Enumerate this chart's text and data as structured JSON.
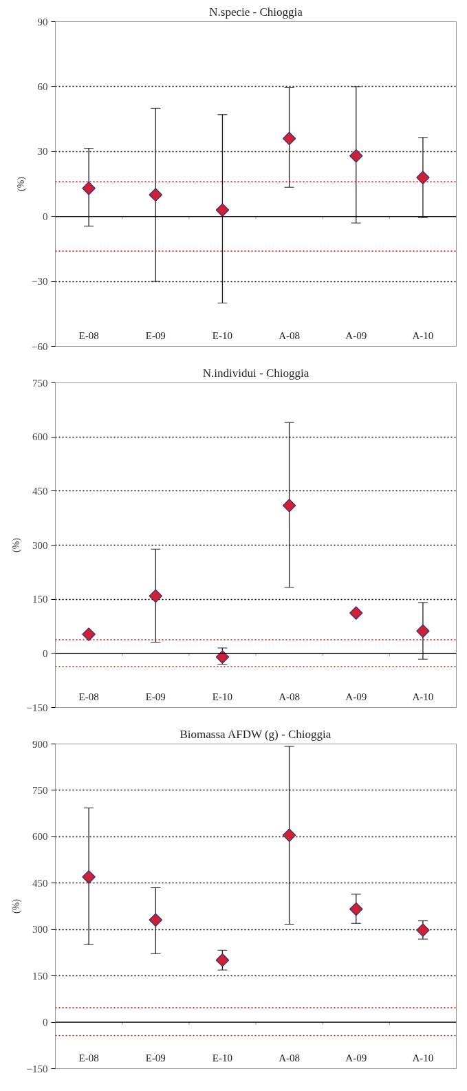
{
  "chart_data": [
    {
      "type": "scatter",
      "title": "N.specie - Chioggia",
      "ylabel": "(%)",
      "categories": [
        "E-08",
        "E-09",
        "E-10",
        "A-08",
        "A-09",
        "A-10"
      ],
      "series": [
        {
          "color": "#cc2233",
          "values": [
            13,
            10,
            3,
            36,
            28,
            18
          ],
          "errors": [
            [
              -4.5,
              31.5
            ],
            [
              -30,
              50
            ],
            [
              -40,
              47
            ],
            [
              13.5,
              59.5
            ],
            [
              -3,
              60
            ],
            [
              -0.5,
              36.5
            ]
          ]
        }
      ],
      "ylim": [
        -60,
        90
      ],
      "yticks": [
        -60,
        -30,
        0,
        30,
        60,
        90
      ],
      "grid": "y",
      "marker": "diamond",
      "ref_lines": [
        {
          "axis": "y",
          "value": 16,
          "color": "#cc0000",
          "line_style": "dotted"
        },
        {
          "axis": "y",
          "value": -16,
          "color": "#cc0000",
          "line_style": "dotted"
        }
      ]
    },
    {
      "type": "scatter",
      "title": "N.individui - Chioggia",
      "ylabel": "(%)",
      "categories": [
        "E-08",
        "E-09",
        "E-10",
        "A-08",
        "A-09",
        "A-10"
      ],
      "series": [
        {
          "color": "#cc2233",
          "values": [
            53,
            159,
            -10,
            410,
            112,
            62
          ],
          "errors": [
            null,
            [
              31,
              289
            ],
            [
              -30,
              15
            ],
            [
              183,
              640
            ],
            null,
            [
              -16,
              141
            ]
          ]
        }
      ],
      "ylim": [
        -150,
        750
      ],
      "yticks": [
        -150,
        0,
        150,
        300,
        450,
        600,
        750
      ],
      "grid": "y",
      "marker": "diamond",
      "ref_lines": [
        {
          "axis": "y",
          "value": 38,
          "color": "#cc0000",
          "line_style": "dotted"
        },
        {
          "axis": "y",
          "value": -37,
          "color": "#cc0000",
          "line_style": "dotted"
        }
      ]
    },
    {
      "type": "scatter",
      "title": "Biomassa AFDW (g) - Chioggia",
      "ylabel": "(%)",
      "categories": [
        "E-08",
        "E-09",
        "E-10",
        "A-08",
        "A-09",
        "A-10"
      ],
      "series": [
        {
          "color": "#cc2233",
          "values": [
            470,
            331,
            201,
            605,
            366,
            298
          ],
          "errors": [
            [
              251,
              693
            ],
            [
              222,
              435
            ],
            [
              169,
              233
            ],
            [
              317,
              892
            ],
            [
              320,
              414
            ],
            [
              269,
              328
            ]
          ]
        }
      ],
      "ylim": [
        -150,
        900
      ],
      "yticks": [
        -150,
        0,
        150,
        300,
        450,
        600,
        750,
        900
      ],
      "grid": "y",
      "marker": "diamond",
      "ref_lines": [
        {
          "axis": "y",
          "value": 47,
          "color": "#cc0000",
          "line_style": "dotted"
        },
        {
          "axis": "y",
          "value": -43,
          "color": "#cc0000",
          "line_style": "dotted"
        }
      ]
    }
  ]
}
